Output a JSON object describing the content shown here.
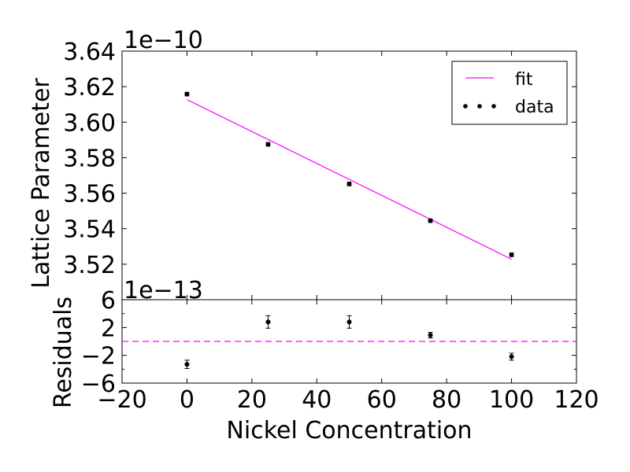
{
  "chart_data": [
    {
      "type": "scatter",
      "panel": "main",
      "xlabel": "",
      "ylabel": "Lattice Parameter",
      "offset_label": "1e−10",
      "xlim": [
        -20,
        120
      ],
      "ylim": [
        3.5,
        3.64
      ],
      "yticks": [
        3.52,
        3.54,
        3.56,
        3.58,
        3.6,
        3.62,
        3.64
      ],
      "ytick_labels": [
        "3.52",
        "3.54",
        "3.56",
        "3.58",
        "3.60",
        "3.62",
        "3.64"
      ],
      "series": [
        {
          "name": "data",
          "color": "#000000",
          "x": [
            0,
            25,
            50,
            75,
            100
          ],
          "y": [
            3.6158,
            3.5875,
            3.5652,
            3.5445,
            3.5253
          ],
          "yerr": [
            0.001,
            0.001,
            0.001,
            0.001,
            0.001
          ]
        },
        {
          "name": "fit",
          "color": "#ff00ff",
          "line": "solid",
          "x": [
            0,
            100
          ],
          "y": [
            3.6127,
            3.5228
          ]
        }
      ],
      "legend": {
        "position": "top-right",
        "entries": [
          "fit",
          "data"
        ]
      }
    },
    {
      "type": "scatter",
      "panel": "residuals",
      "xlabel": "Nickel Concentration",
      "ylabel": "Residuals",
      "offset_label": "1e−13",
      "xlim": [
        -20,
        120
      ],
      "ylim": [
        -6,
        6
      ],
      "xticks": [
        -20,
        0,
        20,
        40,
        60,
        80,
        100,
        120
      ],
      "xtick_labels": [
        "−20",
        "0",
        "20",
        "40",
        "60",
        "80",
        "100",
        "120"
      ],
      "yticks": [
        -6,
        -2,
        2,
        6
      ],
      "ytick_labels": [
        "−6",
        "−2",
        "2",
        "6"
      ],
      "series": [
        {
          "name": "",
          "color": "#000000",
          "x": [
            0,
            25,
            50,
            75,
            100
          ],
          "y": [
            -3.3,
            2.8,
            2.8,
            0.9,
            -2.2
          ],
          "yerr": [
            0.6,
            0.9,
            0.9,
            0.4,
            0.5
          ]
        }
      ],
      "reference_line": {
        "y": 0,
        "color": "#ff00ff",
        "style": "dashed"
      }
    }
  ]
}
